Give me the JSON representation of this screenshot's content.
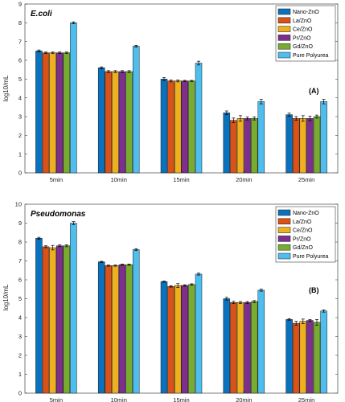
{
  "chart_data": [
    {
      "type": "bar",
      "title": "E.coli",
      "panel_label": "(A)",
      "ylabel": "log10/mL",
      "xlabel": "",
      "ylim": [
        0,
        9
      ],
      "yticks": [
        0,
        1,
        2,
        3,
        4,
        5,
        6,
        7,
        8,
        9
      ],
      "categories": [
        "5min",
        "10min",
        "15min",
        "20min",
        "25min"
      ],
      "legend_position": "top-right",
      "grid": false,
      "series": [
        {
          "name": "Nano-ZnO",
          "color": "#0a72bd",
          "values": [
            6.5,
            5.6,
            5.0,
            3.2,
            3.1
          ],
          "errors": [
            0.05,
            0.05,
            0.08,
            0.1,
            0.08
          ]
        },
        {
          "name": "La/ZnO",
          "color": "#d95319",
          "values": [
            6.4,
            5.4,
            4.9,
            2.8,
            2.9
          ],
          "errors": [
            0.04,
            0.05,
            0.05,
            0.12,
            0.1
          ]
        },
        {
          "name": "Ce/ZnO",
          "color": "#edb120",
          "values": [
            6.4,
            5.4,
            4.9,
            2.9,
            2.9
          ],
          "errors": [
            0.04,
            0.05,
            0.05,
            0.15,
            0.15
          ]
        },
        {
          "name": "Pr/ZnO",
          "color": "#7e2f8e",
          "values": [
            6.4,
            5.4,
            4.9,
            2.9,
            2.9
          ],
          "errors": [
            0.04,
            0.05,
            0.03,
            0.08,
            0.12
          ]
        },
        {
          "name": "Gd/ZnO",
          "color": "#77ac30",
          "values": [
            6.4,
            5.4,
            4.9,
            2.9,
            3.0
          ],
          "errors": [
            0.04,
            0.05,
            0.03,
            0.08,
            0.08
          ]
        },
        {
          "name": "Pure Polyurea",
          "color": "#4dbeee",
          "values": [
            8.0,
            6.75,
            5.85,
            3.8,
            3.8
          ],
          "errors": [
            0.05,
            0.05,
            0.1,
            0.12,
            0.12
          ]
        }
      ]
    },
    {
      "type": "bar",
      "title": "Pseudomonas",
      "panel_label": "(B)",
      "ylabel": "log10/mL",
      "xlabel": "",
      "ylim": [
        0,
        10
      ],
      "yticks": [
        0,
        1,
        2,
        3,
        4,
        5,
        6,
        7,
        8,
        9,
        10
      ],
      "categories": [
        "5min",
        "10min",
        "15min",
        "20min",
        "25min"
      ],
      "legend_position": "top-right",
      "grid": false,
      "series": [
        {
          "name": "Nano-ZnO",
          "color": "#0a72bd",
          "values": [
            8.2,
            6.95,
            5.9,
            5.0,
            3.9
          ],
          "errors": [
            0.05,
            0.03,
            0.03,
            0.07,
            0.04
          ]
        },
        {
          "name": "La/ZnO",
          "color": "#d95319",
          "values": [
            7.75,
            6.75,
            5.65,
            4.8,
            3.7
          ],
          "errors": [
            0.05,
            0.03,
            0.04,
            0.06,
            0.1
          ]
        },
        {
          "name": "Ce/ZnO",
          "color": "#edb120",
          "values": [
            7.7,
            6.75,
            5.7,
            4.8,
            3.8
          ],
          "errors": [
            0.12,
            0.03,
            0.1,
            0.05,
            0.12
          ]
        },
        {
          "name": "Pr/ZnO",
          "color": "#7e2f8e",
          "values": [
            7.8,
            6.8,
            5.7,
            4.8,
            3.85
          ],
          "errors": [
            0.05,
            0.03,
            0.04,
            0.05,
            0.05
          ]
        },
        {
          "name": "Gd/ZnO",
          "color": "#77ac30",
          "values": [
            7.8,
            6.8,
            5.75,
            4.85,
            3.75
          ],
          "errors": [
            0.05,
            0.03,
            0.04,
            0.05,
            0.15
          ]
        },
        {
          "name": "Pure Polyurea",
          "color": "#4dbeee",
          "values": [
            9.0,
            7.6,
            6.3,
            5.45,
            4.35
          ],
          "errors": [
            0.08,
            0.05,
            0.05,
            0.05,
            0.06
          ]
        }
      ]
    }
  ]
}
